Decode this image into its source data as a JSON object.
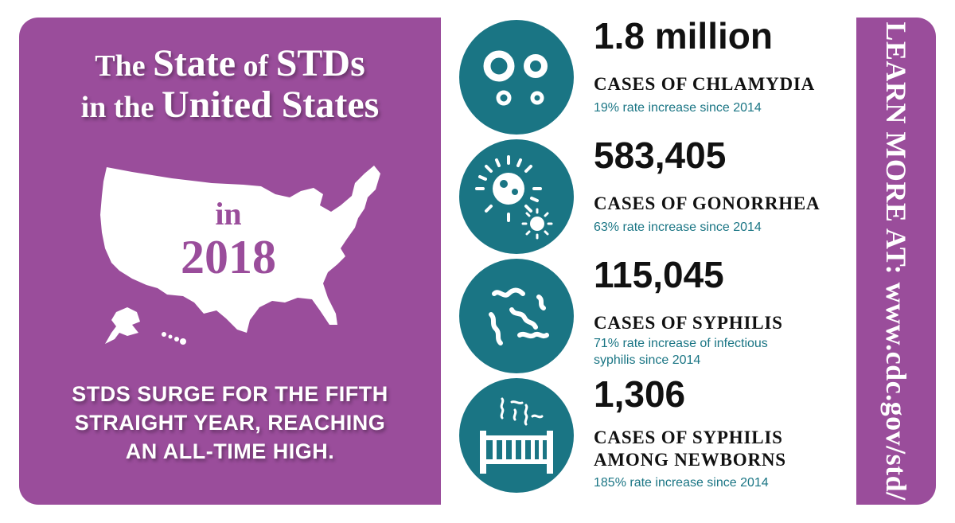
{
  "left": {
    "title": {
      "line1_a": "The ",
      "line1_b": "State",
      "line1_c": " of ",
      "line1_d": "STDs",
      "line2_a": "in the ",
      "line2_b": "United States"
    },
    "in_text": "in",
    "year": "2018",
    "surge_lines": [
      "STDS SURGE FOR THE FIFTH",
      "STRAIGHT YEAR, REACHING",
      "AN ALL-TIME HIGH."
    ]
  },
  "stats": [
    {
      "number": "1.8 million",
      "label_lines": [
        "CASES OF CHLAMYDIA"
      ],
      "note_lines": [
        "19% rate increase since 2014"
      ],
      "icon": "chlamydia-icon"
    },
    {
      "number": "583,405",
      "label_lines": [
        "CASES OF GONORRHEA"
      ],
      "note_lines": [
        "63% rate increase since 2014"
      ],
      "icon": "gonorrhea-icon"
    },
    {
      "number": "115,045",
      "label_lines": [
        "CASES OF SYPHILIS"
      ],
      "note_lines": [
        "71% rate increase of infectious",
        "syphilis since 2014"
      ],
      "icon": "syphilis-icon"
    },
    {
      "number": "1,306",
      "label_lines": [
        "CASES OF SYPHILIS",
        "AMONG NEWBORNS"
      ],
      "note_lines": [
        "185% rate increase since 2014"
      ],
      "icon": "crib-icon"
    }
  ],
  "learn_more": "LEARN MORE AT: www.cdc.gov/std/",
  "colors": {
    "purple": "#9a4d9b",
    "teal": "#1a7584",
    "white": "#ffffff"
  }
}
